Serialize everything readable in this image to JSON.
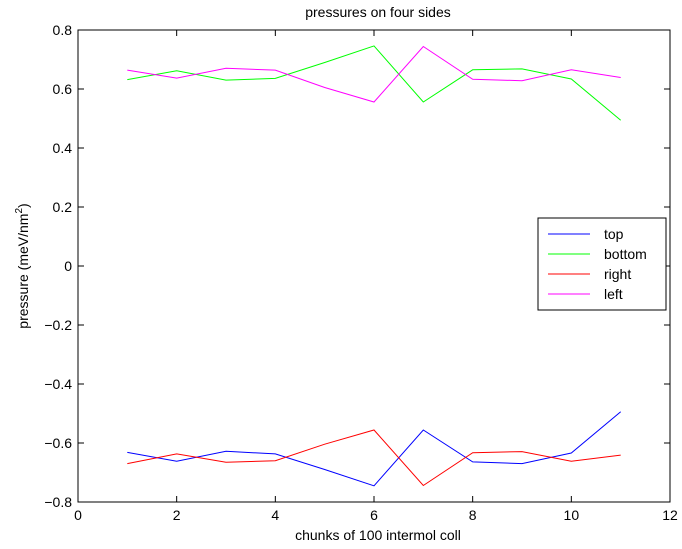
{
  "chart_data": {
    "type": "line",
    "title": "pressures on four sides",
    "xlabel": "chunks of 100 intermol coll",
    "ylabel_main": "pressure (meV/nm",
    "ylabel_sup": "2",
    "ylabel_close": ")",
    "xlim": [
      0,
      12
    ],
    "ylim": [
      -0.8,
      0.8
    ],
    "xticks": [
      0,
      2,
      4,
      6,
      8,
      10,
      12
    ],
    "yticks": [
      -0.8,
      -0.6,
      -0.4,
      -0.2,
      0,
      0.2,
      0.4,
      0.6,
      0.8
    ],
    "xtick_labels": [
      "0",
      "2",
      "4",
      "6",
      "8",
      "10",
      "12"
    ],
    "ytick_labels": [
      "−0.8",
      "−0.6",
      "−0.4",
      "−0.2",
      "0",
      "0.2",
      "0.4",
      "0.6",
      "0.8"
    ],
    "grid": false,
    "legend_position": "right",
    "x": [
      1,
      2,
      3,
      4,
      5,
      6,
      7,
      8,
      9,
      10,
      11
    ],
    "series": [
      {
        "name": "top",
        "color": "#0000ff",
        "values": [
          -0.632,
          -0.662,
          -0.628,
          -0.637,
          -0.69,
          -0.745,
          -0.556,
          -0.664,
          -0.67,
          -0.634,
          -0.494
        ]
      },
      {
        "name": "bottom",
        "color": "#00ff00",
        "values": [
          0.632,
          0.662,
          0.63,
          0.636,
          0.69,
          0.746,
          0.556,
          0.665,
          0.668,
          0.634,
          0.494
        ]
      },
      {
        "name": "right",
        "color": "#ff0000",
        "values": [
          -0.67,
          -0.637,
          -0.665,
          -0.66,
          -0.604,
          -0.556,
          -0.744,
          -0.633,
          -0.629,
          -0.662,
          -0.641
        ]
      },
      {
        "name": "left",
        "color": "#ff00ff",
        "values": [
          0.664,
          0.637,
          0.67,
          0.664,
          0.605,
          0.556,
          0.744,
          0.633,
          0.628,
          0.665,
          0.639
        ]
      }
    ]
  }
}
